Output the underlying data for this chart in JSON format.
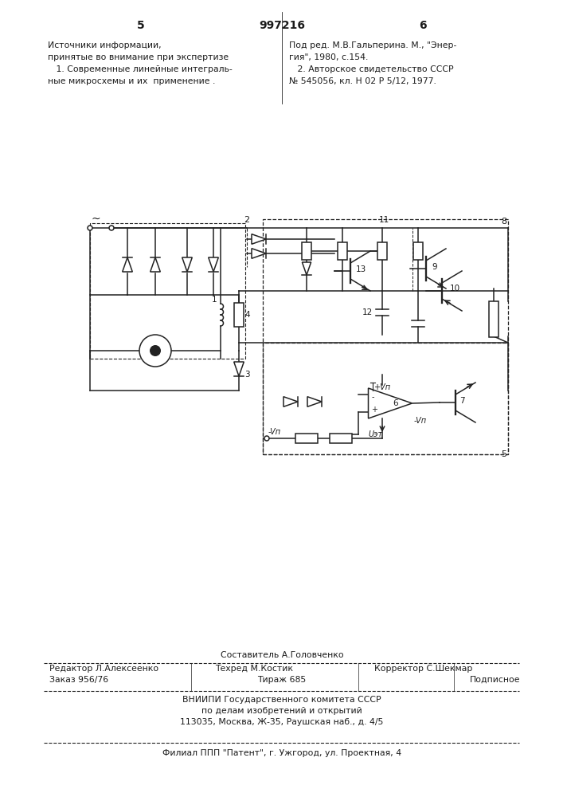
{
  "page_number_left": "5",
  "page_number_center": "997216",
  "page_number_right": "6",
  "top_left_text": [
    "Источники информации,",
    "принятые во внимание при экспертизе",
    "   1. Современные линейные интеграль-",
    "ные микросхемы и их  применение ."
  ],
  "top_right_text": [
    "Под ред. М.В.Гальперина. М., \"Энер-",
    "гия\", 1980, с.154.",
    "   2. Авторское свидетельство СССР",
    "№ 545056, кл. Н 02 Р 5/12, 1977."
  ],
  "bottom_compiler_above": "Составитель А.Головченко",
  "bottom_editor_line": "Редактор Л.Алексеенко",
  "bottom_techred_line": "Техред М.Костик",
  "bottom_corrector_line": "Корректор С.Шекмар",
  "bottom_order": "Заказ 956/76",
  "bottom_tirazh": "Тираж 685",
  "bottom_podpisnoe": "Подписное",
  "bottom_vniiipi": "ВНИИПИ Государственного комитета СССР",
  "bottom_dela": "по делам изобретений и открытий",
  "bottom_address": "113035, Москва, Ж-35, Раушская наб., д. 4/5",
  "bottom_filial": "Филиал ППП \"Патент\", г. Ужгород, ул. Проектная, 4",
  "bg_color": "#ffffff",
  "text_color": "#1a1a1a",
  "line_color": "#222222"
}
